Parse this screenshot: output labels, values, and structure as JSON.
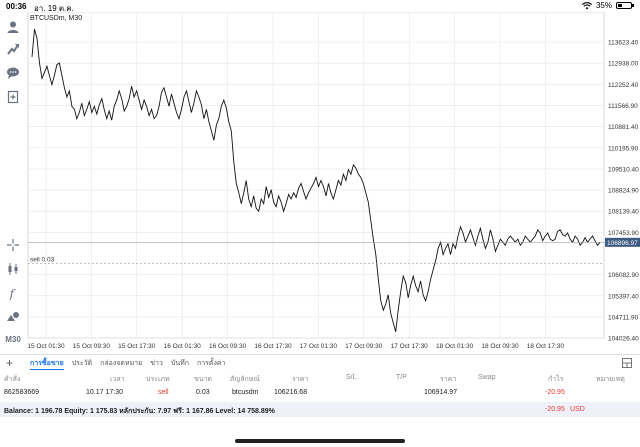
{
  "status": {
    "time": "00:36",
    "date": "อา. 19 ต.ค.",
    "battery": "35%",
    "battery_level": 0.35
  },
  "chart": {
    "symbol": "BTCUSDm, M30",
    "position_line_label": "sell 0.03",
    "current_price": "106896.97",
    "colors": {
      "line": "#111111",
      "grid": "#e6e6e6",
      "price_tag": "#3d5a80"
    }
  },
  "chart_data": {
    "type": "line",
    "y_ticks": [
      "113623.40",
      "112938.00",
      "112252.40",
      "111566.90",
      "110881.40",
      "110195.90",
      "109510.40",
      "108824.90",
      "108139.40",
      "107453.90",
      "106896.97",
      "106082.90",
      "105397.40",
      "104711.90",
      "104026.40"
    ],
    "x_ticks": [
      "15 Oct 01:30",
      "15 Oct 09:30",
      "15 Oct 17:30",
      "16 Oct 01:30",
      "16 Oct 09:30",
      "16 Oct 17:30",
      "17 Oct 01:30",
      "17 Oct 09:30",
      "17 Oct 17:30",
      "18 Oct 01:30",
      "18 Oct 09:30",
      "18 Oct 17:30"
    ],
    "ylim": [
      103800,
      113900
    ],
    "sell_level": 106216.68,
    "current": 106896.97,
    "values": [
      112900,
      113800,
      113500,
      112700,
      112200,
      112400,
      112600,
      112300,
      112000,
      112300,
      112650,
      112700,
      112300,
      111900,
      111600,
      111800,
      111300,
      111200,
      110900,
      111100,
      111400,
      111000,
      111200,
      111450,
      111100,
      111300,
      111050,
      111350,
      111550,
      111200,
      110900,
      111150,
      110850,
      111300,
      111500,
      111800,
      111550,
      111150,
      111300,
      111550,
      111950,
      111600,
      111800,
      111500,
      111200,
      111500,
      111300,
      111000,
      111200,
      110900,
      111000,
      111300,
      111750,
      111900,
      111600,
      111300,
      111700,
      111400,
      111100,
      110900,
      111200,
      111600,
      111800,
      111450,
      111100,
      111400,
      111800,
      111600,
      111350,
      110900,
      111200,
      110800,
      110500,
      110200,
      110700,
      110900,
      111300,
      111500,
      111250,
      110800,
      110500,
      109500,
      108800,
      108500,
      108150,
      108500,
      108900,
      108300,
      108050,
      108400,
      108000,
      107900,
      108300,
      108150,
      108700,
      108350,
      108600,
      108200,
      108050,
      108400,
      108200,
      107900,
      108150,
      108450,
      108300,
      108500,
      108350,
      108650,
      108800,
      108550,
      108300,
      108500,
      108650,
      108800,
      109000,
      108700,
      108900,
      108700,
      108400,
      108800,
      108500,
      108300,
      108600,
      108900,
      108750,
      109100,
      108900,
      109250,
      109100,
      109400,
      109300,
      109100,
      109000,
      108800,
      108500,
      108200,
      107600,
      107000,
      106500,
      105700,
      105000,
      104700,
      104900,
      105200,
      104600,
      104300,
      104000,
      104700,
      105300,
      105800,
      105600,
      105100,
      105500,
      105800,
      105500,
      105300,
      105650,
      105200,
      105000,
      105300,
      105700,
      106000,
      106300,
      106700,
      106900,
      106500,
      106700,
      106850,
      106500,
      106850,
      106700,
      107100,
      107400,
      107200,
      106900,
      107100,
      107300,
      107050,
      106800,
      107100,
      107350,
      107000,
      106700,
      106900,
      107300,
      107000,
      106600,
      106800,
      107000,
      106900,
      106800,
      107000,
      107100,
      107000,
      106900,
      107000,
      106800,
      106900,
      107100,
      107000,
      106900,
      107000,
      107100,
      107300,
      107200,
      106950,
      107100,
      107200,
      107000,
      106950,
      107000,
      107250,
      107300,
      107150,
      107100,
      107200,
      107000,
      106900,
      107100,
      107000,
      106800,
      106900,
      107050,
      106900,
      107000,
      107100,
      106950,
      106800,
      106900
    ]
  },
  "left_toolbar": {
    "icons": [
      "user-icon",
      "share-icon",
      "chat-icon",
      "add-document-icon",
      "crosshair-icon",
      "candlestick-icon",
      "function-icon",
      "objects-icon"
    ],
    "timeframe": "M30"
  },
  "bottom": {
    "tabs": [
      "การซื้อขาย",
      "ประวัติ",
      "กล่องจดหมาย",
      "ข่าว",
      "บันทึก",
      "การตั้งค่า"
    ],
    "headers": [
      "คำสั่ง",
      "เวลา",
      "ประเภท",
      "ขนาด",
      "สัญลักษณ์",
      "ราคา",
      "S/L",
      "T/P",
      "ราคา",
      "Swap",
      "กำไร",
      "หมายเหตุ"
    ],
    "row": {
      "order": "862583669",
      "time": "10.17 17:30",
      "type": "sell",
      "size": "0.03",
      "symbol": "btcusdm",
      "open_price": "106216.68",
      "sl": "",
      "tp": "",
      "price": "106914.97",
      "swap": "",
      "profit": "-20.95",
      "comment": ""
    },
    "balance_text": "Balance: 1 196.78 Equity: 1 175.83 หลักประกัน: 7.97 ฟรี: 1 167.86 Level: 14 758.89%",
    "total_profit": "-20.95",
    "currency": "USD"
  }
}
